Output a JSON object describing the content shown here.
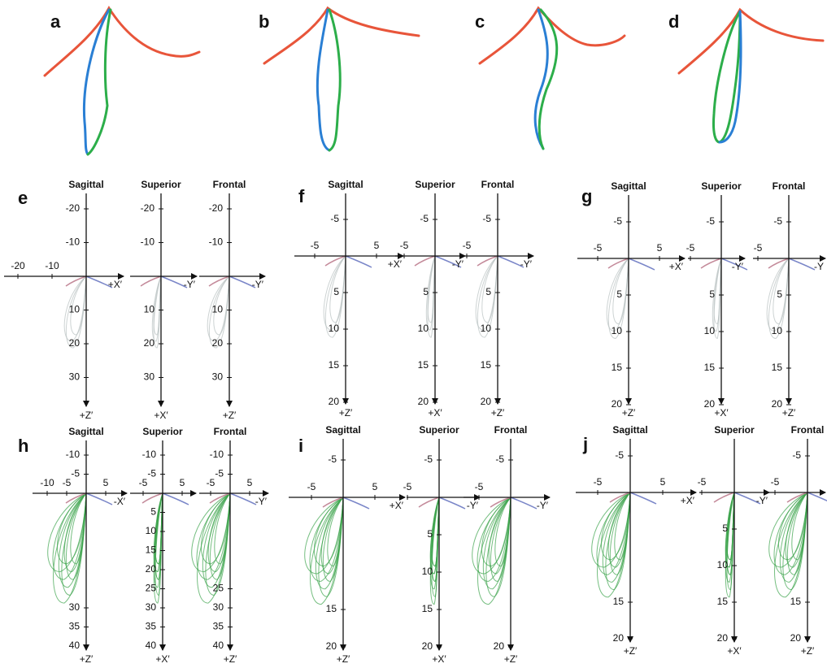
{
  "top_panels": [
    {
      "label": "a"
    },
    {
      "label": "b"
    },
    {
      "label": "c"
    },
    {
      "label": "d"
    }
  ],
  "panels": [
    {
      "label": "e",
      "views": [
        {
          "title": "Sagittal",
          "h_ticks": [
            -20,
            -10
          ],
          "h_label": "+X′",
          "v_ticks": [
            -20,
            -10,
            10,
            20,
            30
          ],
          "v_label": "+Z′"
        },
        {
          "title": "Superior",
          "h_ticks": [],
          "h_label": "-Y′",
          "v_ticks": [
            -20,
            -10,
            10,
            20,
            30
          ],
          "v_label": "+X′"
        },
        {
          "title": "Frontal",
          "h_ticks": [],
          "h_label": "-Y′",
          "v_ticks": [
            -20,
            -10,
            10,
            20,
            30
          ],
          "v_label": "+Z′"
        }
      ]
    },
    {
      "label": "f",
      "views": [
        {
          "title": "Sagittal",
          "h_ticks": [
            -5,
            5
          ],
          "h_label": "+X′",
          "v_ticks": [
            -5,
            5,
            10,
            15,
            20
          ],
          "v_label": "+Z′"
        },
        {
          "title": "Superior",
          "h_ticks": [
            -5
          ],
          "h_label": "-Y′",
          "v_ticks": [
            -5,
            5,
            10,
            15,
            20
          ],
          "v_label": "+X′"
        },
        {
          "title": "Frontal",
          "h_ticks": [
            -5
          ],
          "h_label": "-Y′",
          "v_ticks": [
            -5,
            5,
            10,
            15,
            20
          ],
          "v_label": "+Z′"
        }
      ]
    },
    {
      "label": "g",
      "views": [
        {
          "title": "Sagittal",
          "h_ticks": [
            -5,
            5
          ],
          "h_label": "+X′",
          "v_ticks": [
            -5,
            5,
            10,
            15,
            20
          ],
          "v_label": "+Z′"
        },
        {
          "title": "Superior",
          "h_ticks": [
            -5
          ],
          "h_label": "-Y′",
          "v_ticks": [
            -5,
            5,
            10,
            15,
            20
          ],
          "v_label": "+X′"
        },
        {
          "title": "Frontal",
          "h_ticks": [
            -5
          ],
          "h_label": "-Y",
          "v_ticks": [
            -5,
            5,
            10,
            15,
            20
          ],
          "v_label": "+Z′"
        }
      ]
    },
    {
      "label": "h",
      "views": [
        {
          "title": "Sagittal",
          "h_ticks": [
            -10,
            -5,
            5
          ],
          "h_label": "-X′",
          "v_ticks": [
            -10,
            -5,
            30,
            35,
            40
          ],
          "v_label": "+Z′"
        },
        {
          "title": "Superior",
          "h_ticks": [
            -5,
            5
          ],
          "h_label": "",
          "v_ticks": [
            -10,
            -5,
            5,
            10,
            15,
            20,
            25,
            30,
            35,
            40
          ],
          "v_label": "+X′"
        },
        {
          "title": "Frontal",
          "h_ticks": [
            -5,
            5
          ],
          "h_label": "-Y′",
          "v_ticks": [
            -10,
            -5,
            25,
            30,
            35,
            40
          ],
          "v_label": "+Z′"
        }
      ]
    },
    {
      "label": "i",
      "views": [
        {
          "title": "Sagittal",
          "h_ticks": [
            -5,
            5
          ],
          "h_label": "+X′",
          "v_ticks": [
            -5,
            15,
            20
          ],
          "v_label": "+Z′"
        },
        {
          "title": "Superior",
          "h_ticks": [
            -5
          ],
          "h_label": "-Y′",
          "v_ticks": [
            -5,
            5,
            10,
            15,
            20
          ],
          "v_label": "+X′"
        },
        {
          "title": "Frontal",
          "h_ticks": [
            -5
          ],
          "h_label": "-Y′",
          "v_ticks": [
            -5,
            20
          ],
          "v_label": "+Z′"
        }
      ]
    },
    {
      "label": "j",
      "views": [
        {
          "title": "Sagittal",
          "h_ticks": [
            -5,
            5
          ],
          "h_label": "+X′",
          "v_ticks": [
            -5,
            15,
            20
          ],
          "v_label": "+Z′"
        },
        {
          "title": "Superior",
          "h_ticks": [
            -5
          ],
          "h_label": "-Y′",
          "v_ticks": [
            5,
            10,
            15,
            20
          ],
          "v_label": "+X′"
        },
        {
          "title": "Frontal",
          "h_ticks": [
            -5
          ],
          "h_label": "",
          "v_ticks": [
            -5,
            15,
            20
          ],
          "v_label": "+Z′"
        }
      ]
    }
  ]
}
